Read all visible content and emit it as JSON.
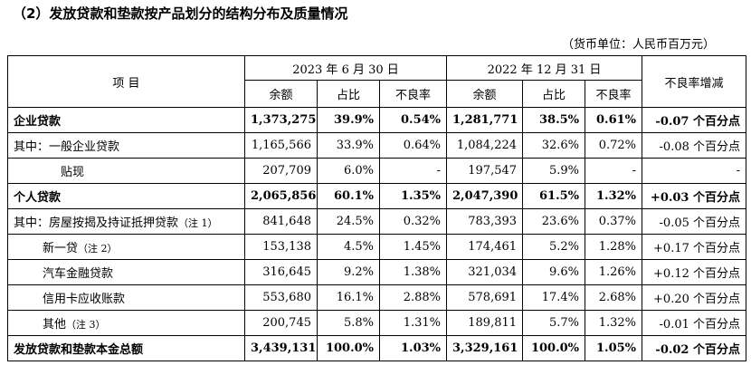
{
  "title": "（2）发放贷款和垫款按产品划分的结构分布及质量情况",
  "unit": "（货币单位：人民币百万元）",
  "header": {
    "item": "项 目",
    "period1": "2023 年 6 月 30 日",
    "period2": "2022 年 12 月 31 日",
    "npl_change": "不良率增减",
    "balance": "余额",
    "share": "占比",
    "npl": "不良率"
  },
  "rows": [
    {
      "label": "企业贷款",
      "note": "",
      "b1": "1,373,275",
      "s1": "39.9%",
      "n1": "0.54%",
      "b2": "1,281,771",
      "s2": "38.5%",
      "n2": "0.61%",
      "chg": "-0.07 个百分点"
    },
    {
      "label": "其中：一般企业贷款",
      "note": "",
      "b1": "1,165,566",
      "s1": "33.9%",
      "n1": "0.64%",
      "b2": "1,084,224",
      "s2": "32.6%",
      "n2": "0.72%",
      "chg": "-0.08 个百分点"
    },
    {
      "label": "贴现",
      "note": "",
      "b1": "207,709",
      "s1": "6.0%",
      "n1": "-",
      "b2": "197,547",
      "s2": "5.9%",
      "n2": "-",
      "chg": "-"
    },
    {
      "label": "个人贷款",
      "note": "",
      "b1": "2,065,856",
      "s1": "60.1%",
      "n1": "1.35%",
      "b2": "2,047,390",
      "s2": "61.5%",
      "n2": "1.32%",
      "chg": "+0.03 个百分点"
    },
    {
      "label": "其中：房屋按揭及持证抵押贷款",
      "note": "（注 1）",
      "b1": "841,648",
      "s1": "24.5%",
      "n1": "0.32%",
      "b2": "783,393",
      "s2": "23.6%",
      "n2": "0.37%",
      "chg": "-0.05 个百分点"
    },
    {
      "label": "新一贷",
      "note": "（注 2）",
      "b1": "153,138",
      "s1": "4.5%",
      "n1": "1.45%",
      "b2": "174,461",
      "s2": "5.2%",
      "n2": "1.28%",
      "chg": "+0.17 个百分点"
    },
    {
      "label": "汽车金融贷款",
      "note": "",
      "b1": "316,645",
      "s1": "9.2%",
      "n1": "1.38%",
      "b2": "321,034",
      "s2": "9.6%",
      "n2": "1.26%",
      "chg": "+0.12 个百分点"
    },
    {
      "label": "信用卡应收账款",
      "note": "",
      "b1": "553,680",
      "s1": "16.1%",
      "n1": "2.88%",
      "b2": "578,691",
      "s2": "17.4%",
      "n2": "2.68%",
      "chg": "+0.20 个百分点"
    },
    {
      "label": "其他",
      "note": "（注 3）",
      "b1": "200,745",
      "s1": "5.8%",
      "n1": "1.31%",
      "b2": "189,811",
      "s2": "5.7%",
      "n2": "1.32%",
      "chg": "-0.01 个百分点"
    },
    {
      "label": "发放贷款和垫款本金总额",
      "note": "",
      "b1": "3,439,131",
      "s1": "100.0%",
      "n1": "1.03%",
      "b2": "3,329,161",
      "s2": "100.0%",
      "n2": "1.05%",
      "chg": "-0.02 个百分点"
    }
  ]
}
